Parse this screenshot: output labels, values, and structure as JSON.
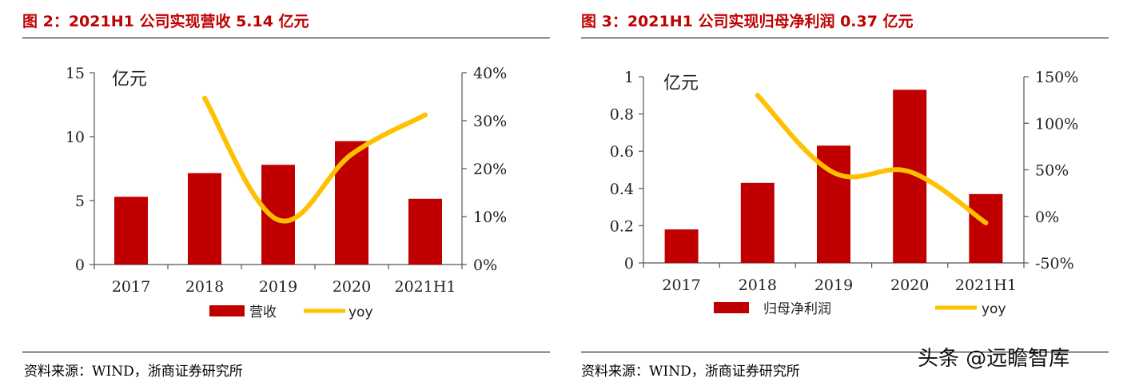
{
  "figures": {
    "left": {
      "title": "图 2：2021H1 公司实现营收 5.14 亿元",
      "source": "资料来源：WIND，浙商证券研究所"
    },
    "right": {
      "title": "图 3：2021H1 公司实现归母净利润 0.37 亿元",
      "source": "资料来源：WIND，浙商证券研究所"
    }
  },
  "watermark": "头条 @远瞻智库",
  "colors": {
    "bar": "#c00000",
    "line": "#ffc000",
    "title": "#c00000"
  },
  "chart_data": [
    {
      "type": "bar",
      "title": "图 2：2021H1 公司实现营收 5.14 亿元",
      "unit_label": "亿元",
      "categories": [
        "2017",
        "2018",
        "2019",
        "2020",
        "2021H1"
      ],
      "ylim": [
        0,
        15
      ],
      "y_ticks": [
        "0",
        "5",
        "10",
        "15"
      ],
      "y_tick_values": [
        0,
        5,
        10,
        15
      ],
      "y2lim": [
        0,
        40
      ],
      "y2_ticks": [
        "0%",
        "10%",
        "20%",
        "30%",
        "40%"
      ],
      "y2_tick_values": [
        0,
        10,
        20,
        30,
        40
      ],
      "series": [
        {
          "name": "营收",
          "type": "bar",
          "axis": "left",
          "values": [
            5.3,
            7.15,
            7.8,
            9.65,
            5.14
          ]
        },
        {
          "name": "yoy",
          "type": "line",
          "axis": "right",
          "values": [
            null,
            34.7,
            9.3,
            23.0,
            31.2
          ]
        }
      ],
      "legend": "bottom",
      "grid": false
    },
    {
      "type": "bar",
      "title": "图 3：2021H1 公司实现归母净利润 0.37 亿元",
      "unit_label": "亿元",
      "categories": [
        "2017",
        "2018",
        "2019",
        "2020",
        "2021H1"
      ],
      "ylim": [
        0,
        1
      ],
      "y_ticks": [
        "0",
        "0.2",
        "0.4",
        "0.6",
        "0.8",
        "1"
      ],
      "y_tick_values": [
        0,
        0.2,
        0.4,
        0.6,
        0.8,
        1
      ],
      "y2lim": [
        -50,
        150
      ],
      "y2_ticks": [
        "-50%",
        "0%",
        "50%",
        "100%",
        "150%"
      ],
      "y2_tick_values": [
        -50,
        0,
        50,
        100,
        150
      ],
      "series": [
        {
          "name": "归母净利润",
          "type": "bar",
          "axis": "left",
          "values": [
            0.18,
            0.43,
            0.63,
            0.93,
            0.37
          ]
        },
        {
          "name": "yoy",
          "type": "line",
          "axis": "right",
          "values": [
            null,
            130,
            47,
            48,
            -7
          ]
        }
      ],
      "legend": "bottom",
      "grid": false
    }
  ]
}
